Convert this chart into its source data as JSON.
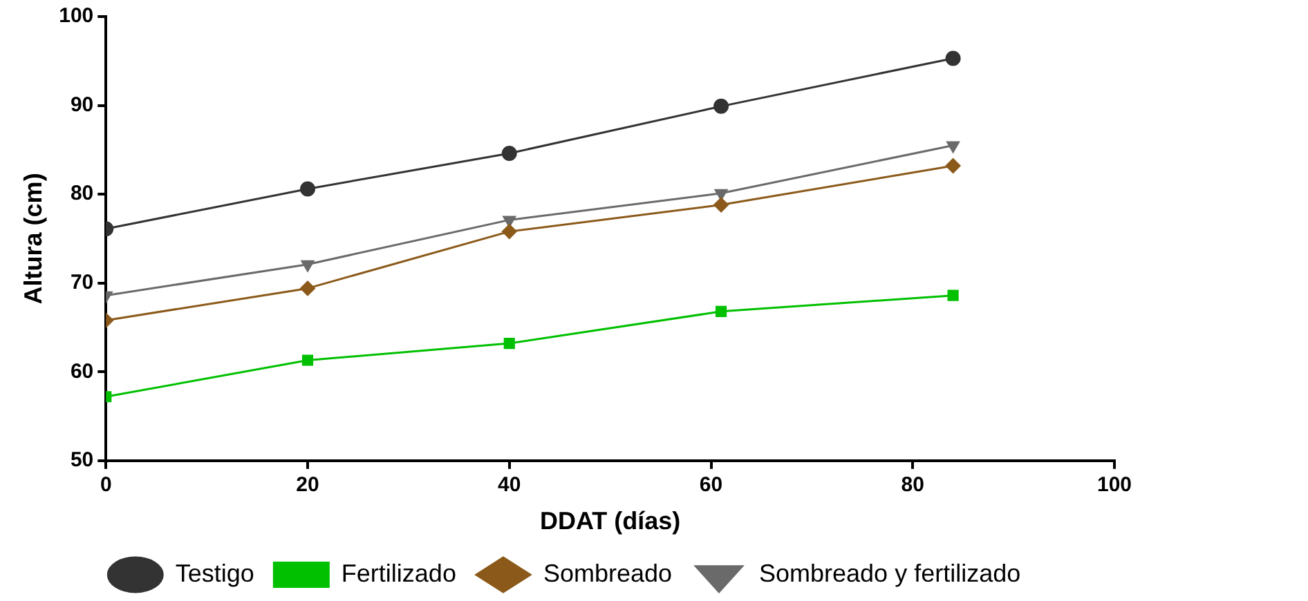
{
  "chart_data": {
    "type": "line",
    "xlabel": "DDAT (días)",
    "ylabel": "Altura (cm)",
    "xlim": [
      0,
      100
    ],
    "xticks": [
      0,
      20,
      40,
      60,
      80,
      100
    ],
    "ylim": [
      50,
      100
    ],
    "yticks": [
      50,
      60,
      70,
      80,
      90,
      100
    ],
    "grid": false,
    "legend": "bottom",
    "line_style": "solid",
    "x": [
      0,
      20,
      40,
      61,
      84
    ],
    "series": [
      {
        "name": "Testigo",
        "color": "#333333",
        "marker": "circle",
        "values": [
          76.1,
          80.6,
          84.6,
          89.9,
          95.3
        ]
      },
      {
        "name": "Fertilizado",
        "color": "#00c000",
        "marker": "square",
        "values": [
          57.2,
          61.3,
          63.2,
          66.8,
          68.6
        ]
      },
      {
        "name": "Sombreado",
        "color": "#8b5a1a",
        "marker": "diamond",
        "values": [
          65.8,
          69.4,
          75.8,
          78.8,
          83.2
        ]
      },
      {
        "name": "Sombreado y fertilizado",
        "color": "#6a6a6a",
        "marker": "triangle-down",
        "values": [
          68.6,
          72.1,
          77.1,
          80.1,
          85.5
        ]
      }
    ]
  }
}
